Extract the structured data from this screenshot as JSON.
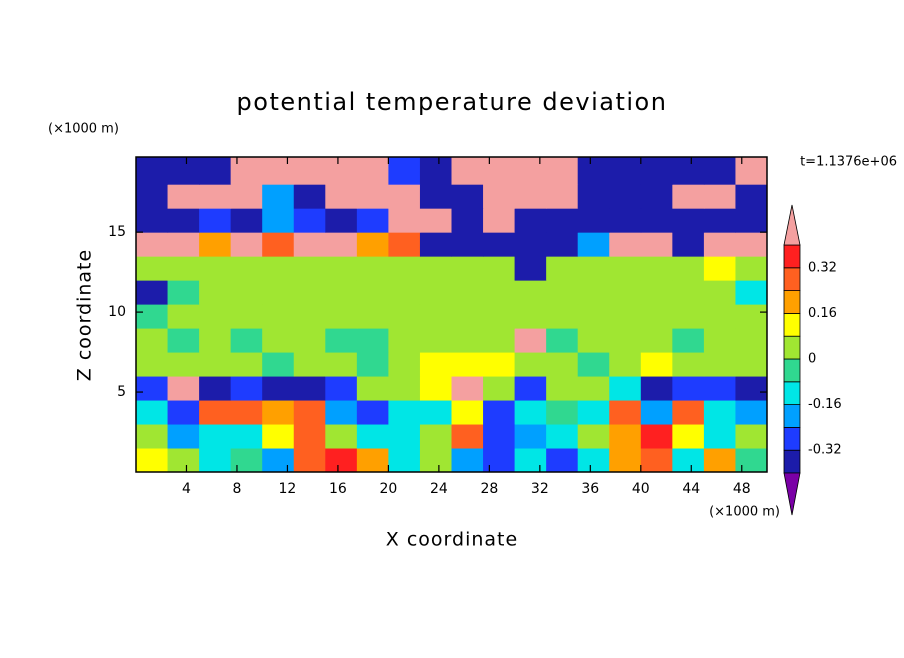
{
  "chart_data": {
    "type": "contour",
    "title": "potential temperature deviation",
    "xlabel": "X coordinate",
    "ylabel": "Z coordinate",
    "xunit": "(×1000 m)",
    "yunit": "(×1000 m)",
    "time_label": "t=1.1376e+06",
    "xlim": [
      0,
      50
    ],
    "ylim": [
      0,
      19.7
    ],
    "xticks": [
      4,
      8,
      12,
      16,
      20,
      24,
      28,
      32,
      36,
      40,
      44,
      48
    ],
    "yticks": [
      5,
      10,
      15
    ],
    "x": [
      1.25,
      3.75,
      6.25,
      8.75,
      11.25,
      13.75,
      16.25,
      18.75,
      21.25,
      23.75,
      26.25,
      28.75,
      31.25,
      33.75,
      36.25,
      38.75,
      41.25,
      43.75,
      46.25,
      48.75
    ],
    "y": [
      0.75,
      2.25,
      3.75,
      5.25,
      6.75,
      8.25,
      9.75,
      11.25,
      12.75,
      14.25,
      15.75,
      17.25,
      18.75
    ],
    "values": [
      [
        0.1,
        0.02,
        -0.1,
        -0.05,
        -0.2,
        0.3,
        0.35,
        0.2,
        -0.12,
        0.0,
        -0.2,
        -0.3,
        -0.12,
        -0.3,
        -0.1,
        0.2,
        0.3,
        -0.1,
        0.2,
        -0.05
      ],
      [
        0.05,
        -0.2,
        -0.12,
        -0.1,
        0.1,
        0.3,
        0.05,
        -0.15,
        -0.12,
        0.05,
        0.3,
        -0.3,
        -0.2,
        -0.1,
        0.02,
        0.2,
        0.35,
        0.1,
        -0.1,
        0.05
      ],
      [
        -0.12,
        -0.25,
        0.25,
        0.3,
        0.2,
        0.25,
        -0.2,
        -0.3,
        -0.12,
        -0.1,
        0.1,
        -0.25,
        -0.12,
        -0.05,
        -0.1,
        0.3,
        -0.2,
        0.3,
        -0.12,
        -0.2
      ],
      [
        -0.3,
        0.45,
        -0.35,
        -0.3,
        -0.4,
        -0.35,
        -0.3,
        0.02,
        0.0,
        0.1,
        0.45,
        0.05,
        -0.3,
        0.02,
        0.0,
        -0.1,
        -0.38,
        -0.3,
        -0.3,
        -0.35
      ],
      [
        0.02,
        0.04,
        0.0,
        0.03,
        -0.02,
        0.05,
        0.02,
        -0.04,
        0.06,
        0.1,
        0.12,
        0.08,
        0.04,
        0.06,
        -0.03,
        0.05,
        0.1,
        0.02,
        0.04,
        0.03
      ],
      [
        0.04,
        -0.03,
        0.02,
        -0.05,
        0.02,
        0.0,
        -0.03,
        -0.02,
        0.04,
        0.02,
        0.0,
        0.03,
        0.45,
        -0.03,
        0.04,
        0.02,
        0.0,
        -0.02,
        0.03,
        0.04
      ],
      [
        -0.05,
        0.03,
        0.05,
        0.02,
        0.04,
        0.02,
        0.04,
        0.03,
        0.06,
        0.05,
        0.04,
        0.02,
        0.03,
        0.05,
        0.04,
        0.03,
        0.05,
        0.02,
        0.04,
        0.06
      ],
      [
        -0.38,
        -0.05,
        0.04,
        0.03,
        0.02,
        0.05,
        0.03,
        0.06,
        0.04,
        0.05,
        0.05,
        0.03,
        0.05,
        0.04,
        0.06,
        0.04,
        0.05,
        0.03,
        0.04,
        -0.1
      ],
      [
        0.06,
        0.04,
        0.05,
        0.06,
        0.04,
        0.03,
        0.05,
        0.06,
        0.04,
        0.03,
        0.05,
        0.04,
        -0.38,
        0.05,
        0.04,
        0.06,
        0.04,
        0.05,
        0.1,
        0.06
      ],
      [
        0.45,
        0.45,
        0.2,
        0.45,
        0.3,
        0.45,
        0.45,
        0.2,
        0.3,
        -0.4,
        -0.38,
        -0.4,
        -0.4,
        -0.4,
        -0.2,
        0.45,
        0.45,
        -0.4,
        0.45,
        0.45
      ],
      [
        -0.4,
        -0.4,
        -0.3,
        -0.4,
        -0.2,
        -0.3,
        -0.4,
        -0.3,
        0.45,
        0.45,
        -0.4,
        0.45,
        -0.4,
        -0.4,
        -0.4,
        -0.4,
        -0.4,
        -0.4,
        -0.4,
        -0.4
      ],
      [
        -0.4,
        0.45,
        0.45,
        0.45,
        -0.2,
        -0.4,
        0.45,
        0.45,
        0.45,
        -0.4,
        -0.4,
        0.45,
        0.45,
        0.45,
        -0.4,
        -0.4,
        -0.4,
        0.45,
        0.45,
        -0.4
      ],
      [
        -0.4,
        -0.4,
        -0.4,
        0.45,
        0.45,
        0.45,
        0.45,
        0.45,
        -0.3,
        -0.4,
        0.45,
        0.45,
        0.45,
        0.45,
        -0.4,
        -0.4,
        -0.4,
        -0.4,
        -0.4,
        0.45
      ]
    ],
    "levels": [
      -0.4,
      -0.32,
      -0.24,
      -0.16,
      -0.08,
      0,
      0.08,
      0.16,
      0.24,
      0.32,
      0.4
    ],
    "colorbar_ticks": [
      -0.32,
      -0.16,
      0,
      0.16,
      0.32
    ],
    "colors": [
      "#7a00a6",
      "#1c1caa",
      "#1e3cff",
      "#00a0ff",
      "#00e6e6",
      "#30d890",
      "#a0e632",
      "#ffff00",
      "#ffa000",
      "#ff6020",
      "#ff2020",
      "#f4a0a0"
    ]
  }
}
